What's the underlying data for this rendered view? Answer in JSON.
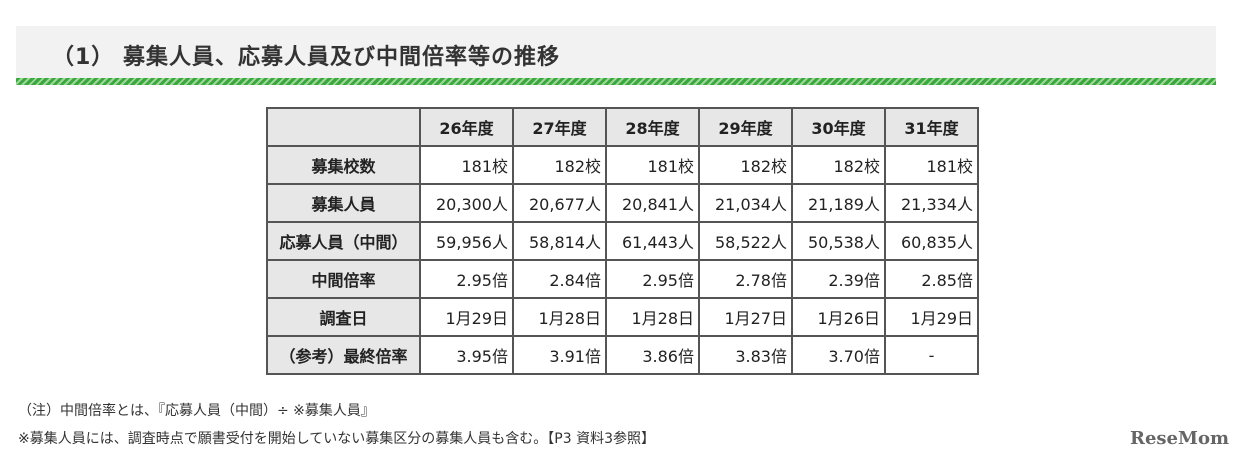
{
  "heading": {
    "title": "（1） 募集人員、応募人員及び中間倍率等の推移"
  },
  "table": {
    "columns": [
      "26年度",
      "27年度",
      "28年度",
      "29年度",
      "30年度",
      "31年度"
    ],
    "rows": [
      {
        "label": "募集校数",
        "values": [
          "181校",
          "182校",
          "181校",
          "182校",
          "182校",
          "181校"
        ]
      },
      {
        "label": "募集人員",
        "values": [
          "20,300人",
          "20,677人",
          "20,841人",
          "21,034人",
          "21,189人",
          "21,334人"
        ]
      },
      {
        "label": "応募人員（中間）",
        "values": [
          "59,956人",
          "58,814人",
          "61,443人",
          "58,522人",
          "50,538人",
          "60,835人"
        ]
      },
      {
        "label": "中間倍率",
        "values": [
          "2.95倍",
          "2.84倍",
          "2.95倍",
          "2.78倍",
          "2.39倍",
          "2.85倍"
        ]
      },
      {
        "label": "調査日",
        "values": [
          "1月29日",
          "1月28日",
          "1月28日",
          "1月27日",
          "1月26日",
          "1月29日"
        ]
      },
      {
        "label": "（参考）最終倍率",
        "values": [
          "3.95倍",
          "3.91倍",
          "3.86倍",
          "3.83倍",
          "3.70倍",
          "-"
        ]
      }
    ]
  },
  "notes": {
    "note1": "（注）中間倍率とは、『応募人員（中間）÷ ※募集人員』",
    "note2": "※募集人員には、調査時点で願書受付を開始していない募集区分の募集人員も含む。【P3 資料3参照】"
  },
  "logo": {
    "text": "ReseMom"
  }
}
